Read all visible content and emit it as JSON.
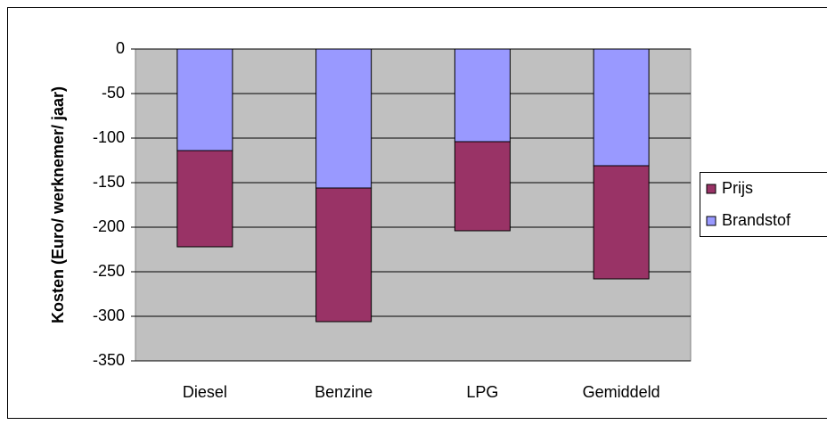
{
  "chart_data": {
    "type": "stacked_bar",
    "y_label": "Kosten (Euro/ werknemer/ jaar)",
    "categories": [
      "Diesel",
      "Benzine",
      "LPG",
      "Gemiddeld"
    ],
    "series": [
      {
        "name": "Prijs",
        "color": "#993366",
        "values": [
          -108,
          -150,
          -100,
          -127
        ]
      },
      {
        "name": "Brandstof",
        "color": "#9999ff",
        "values": [
          -114,
          -156,
          -104,
          -131
        ]
      }
    ],
    "ylim": [
      -350,
      0
    ],
    "yticks": [
      0,
      -50,
      -100,
      -150,
      -200,
      -250,
      -300,
      -350
    ],
    "grid": true
  }
}
